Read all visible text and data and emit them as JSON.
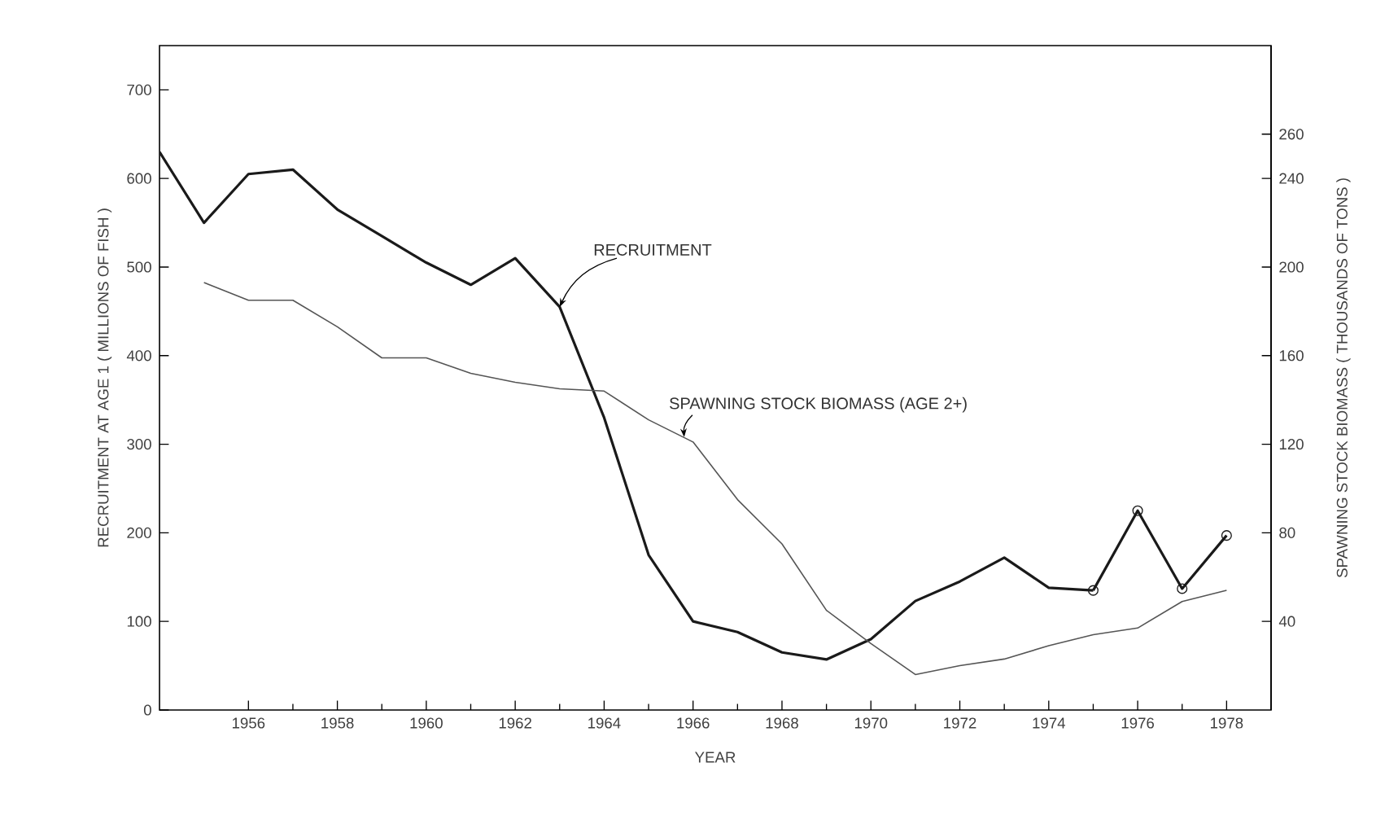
{
  "chart_data": {
    "type": "line",
    "xlabel": "YEAR",
    "ylabel": "RECRUITMENT AT AGE 1 ( MILLIONS OF FISH )",
    "y2label": "SPAWNING STOCK BIOMASS ( THOUSANDS OF TONS )",
    "xlim": [
      1954,
      1979
    ],
    "xticks": [
      1956,
      1958,
      1960,
      1962,
      1964,
      1966,
      1968,
      1970,
      1972,
      1974,
      1976,
      1978
    ],
    "ylim": [
      0,
      750
    ],
    "yticks": [
      0,
      100,
      200,
      300,
      400,
      500,
      600,
      700
    ],
    "y2lim": [
      0,
      300
    ],
    "y2ticks": [
      40,
      80,
      120,
      160,
      200,
      240,
      260
    ],
    "grid": false,
    "series": [
      {
        "color": "#1a1a1a",
        "marker": "none",
        "x": [
          1954,
          1955,
          1956,
          1957,
          1958,
          1959,
          1960,
          1961,
          1962,
          1963,
          1964,
          1965,
          1966,
          1967,
          1968,
          1969,
          1970,
          1971,
          1972,
          1973,
          1974,
          1975
        ],
        "values": [
          630,
          550,
          605,
          610,
          565,
          535,
          505,
          480,
          510,
          455,
          330,
          175,
          100,
          88,
          65,
          57,
          80,
          123,
          145,
          172,
          138,
          135
        ]
      },
      {
        "color": "#1a1a1a",
        "marker": "circle",
        "x": [
          1975,
          1976,
          1977,
          1978
        ],
        "values": [
          135,
          225,
          137,
          197
        ]
      },
      {
        "color": "#555555",
        "marker": "none",
        "axis": "y2",
        "x": [
          1955,
          1956,
          1957,
          1958,
          1959,
          1960,
          1961,
          1962,
          1963,
          1964,
          1965,
          1966,
          1967,
          1968,
          1969,
          1970,
          1971,
          1972,
          1973,
          1974,
          1975,
          1976,
          1977,
          1978
        ],
        "values": [
          193,
          185,
          185,
          173,
          159,
          159,
          152,
          148,
          145,
          144,
          131,
          121,
          95,
          75,
          45,
          30,
          16,
          20,
          23,
          29,
          34,
          37,
          49,
          54
        ]
      }
    ],
    "annotations": [
      {
        "text": "RECRUITMENT",
        "x": 1963,
        "y": 455
      },
      {
        "text": "SPAWNING STOCK BIOMASS (AGE 2+)",
        "x": 1965.8,
        "y": 308
      }
    ]
  }
}
